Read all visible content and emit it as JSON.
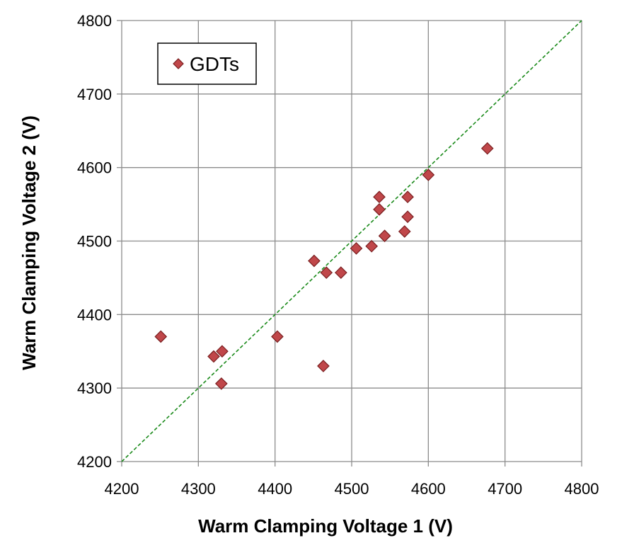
{
  "chart_data": {
    "type": "scatter",
    "title": "",
    "xlabel": "Warm Clamping Voltage 1 (V)",
    "ylabel": "Warm Clamping Voltage 2 (V)",
    "xlim": [
      4200,
      4800
    ],
    "ylim": [
      4200,
      4800
    ],
    "xticks": [
      4200,
      4300,
      4400,
      4500,
      4600,
      4700,
      4800
    ],
    "yticks": [
      4200,
      4300,
      4400,
      4500,
      4600,
      4700,
      4800
    ],
    "grid": true,
    "legend_position": "top-left",
    "colors": {
      "marker_fill": "#c0474a",
      "marker_stroke": "#7a1f20",
      "reference_line": "#1a8a1a",
      "grid": "#8c8c8c"
    },
    "series": [
      {
        "name": "GDTs",
        "marker": "diamond",
        "points": [
          {
            "x": 4251,
            "y": 4370
          },
          {
            "x": 4320,
            "y": 4343
          },
          {
            "x": 4331,
            "y": 4350
          },
          {
            "x": 4330,
            "y": 4306
          },
          {
            "x": 4403,
            "y": 4370
          },
          {
            "x": 4463,
            "y": 4330
          },
          {
            "x": 4451,
            "y": 4473
          },
          {
            "x": 4467,
            "y": 4457
          },
          {
            "x": 4486,
            "y": 4457
          },
          {
            "x": 4506,
            "y": 4490
          },
          {
            "x": 4526,
            "y": 4493
          },
          {
            "x": 4543,
            "y": 4507
          },
          {
            "x": 4536,
            "y": 4560
          },
          {
            "x": 4536,
            "y": 4543
          },
          {
            "x": 4569,
            "y": 4513
          },
          {
            "x": 4573,
            "y": 4533
          },
          {
            "x": 4573,
            "y": 4560
          },
          {
            "x": 4600,
            "y": 4590
          },
          {
            "x": 4677,
            "y": 4626
          }
        ]
      }
    ],
    "reference_line": {
      "name": "y = x",
      "style": "dashed",
      "from": [
        4200,
        4200
      ],
      "to": [
        4800,
        4800
      ]
    }
  }
}
